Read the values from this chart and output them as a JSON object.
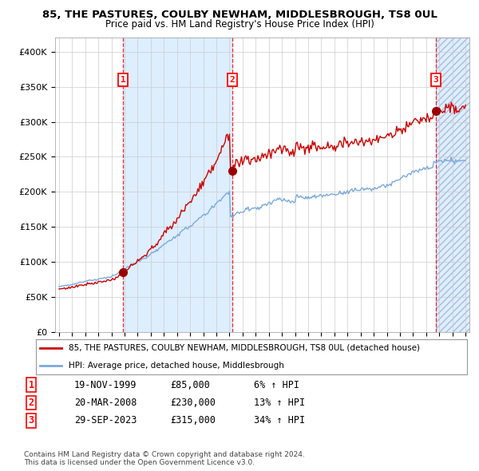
{
  "title": "85, THE PASTURES, COULBY NEWHAM, MIDDLESBROUGH, TS8 0UL",
  "subtitle": "Price paid vs. HM Land Registry's House Price Index (HPI)",
  "legend_line1": "85, THE PASTURES, COULBY NEWHAM, MIDDLESBROUGH, TS8 0UL (detached house)",
  "legend_line2": "HPI: Average price, detached house, Middlesbrough",
  "transactions": [
    {
      "num": 1,
      "date": "19-NOV-1999",
      "price": 85000,
      "pct": "6%",
      "dir": "↑"
    },
    {
      "num": 2,
      "date": "20-MAR-2008",
      "price": 230000,
      "pct": "13%",
      "dir": "↑"
    },
    {
      "num": 3,
      "date": "29-SEP-2023",
      "price": 315000,
      "pct": "34%",
      "dir": "↑"
    }
  ],
  "trans_years": [
    1999.88,
    2008.22,
    2023.75
  ],
  "trans_prices": [
    85000,
    230000,
    315000
  ],
  "year_start": 1995,
  "year_end": 2026,
  "ylim": [
    0,
    420000
  ],
  "yticks": [
    0,
    50000,
    100000,
    150000,
    200000,
    250000,
    300000,
    350000,
    400000
  ],
  "hpi_color": "#7aaadd",
  "price_color": "#cc0000",
  "marker_color": "#990000",
  "bg_color": "#ffffff",
  "shaded_color": "#ddeeff",
  "grid_color": "#cccccc",
  "footnote": "Contains HM Land Registry data © Crown copyright and database right 2024.\nThis data is licensed under the Open Government Licence v3.0."
}
